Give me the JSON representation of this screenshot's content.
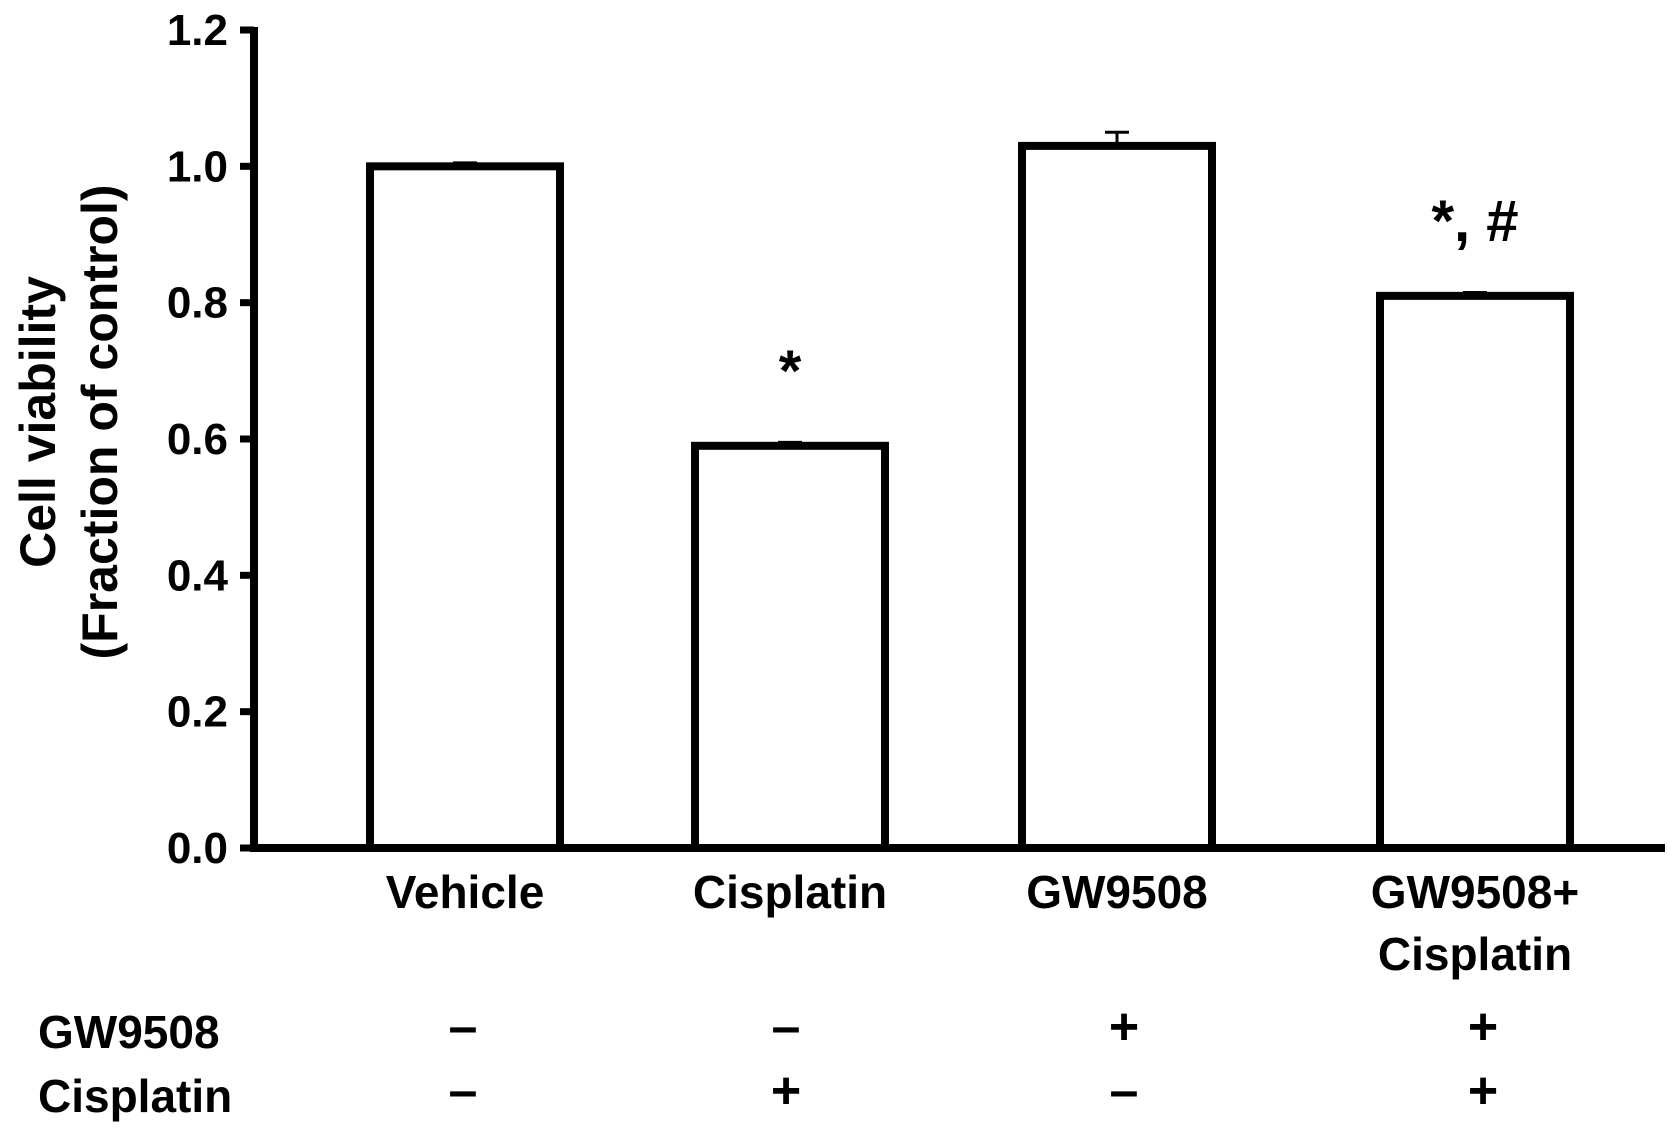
{
  "chart_data": {
    "type": "bar",
    "ylabel": [
      "Cell viability",
      "(Fraction of control)"
    ],
    "ylim": [
      0,
      1.2
    ],
    "yticks": [
      "0.0",
      "0.2",
      "0.4",
      "0.6",
      "0.8",
      "1.0",
      "1.2"
    ],
    "categories": [
      {
        "lines": [
          "Vehicle"
        ]
      },
      {
        "lines": [
          "Cisplatin"
        ]
      },
      {
        "lines": [
          "GW9508"
        ]
      },
      {
        "lines": [
          "GW9508+",
          "Cisplatin"
        ]
      }
    ],
    "values": [
      1.0,
      0.59,
      1.03,
      0.81
    ],
    "errors": [
      0.005,
      0.005,
      0.02,
      0.005
    ],
    "annotations": [
      "",
      "*",
      "",
      "*, #"
    ],
    "treatments": [
      {
        "label": "GW9508",
        "signs": [
          "–",
          "–",
          "+",
          "+"
        ]
      },
      {
        "label": "Cisplatin",
        "signs": [
          "–",
          "+",
          "–",
          "+"
        ]
      }
    ],
    "grid": false,
    "bar_fill": "#ffffff",
    "bar_stroke": "#000000"
  }
}
